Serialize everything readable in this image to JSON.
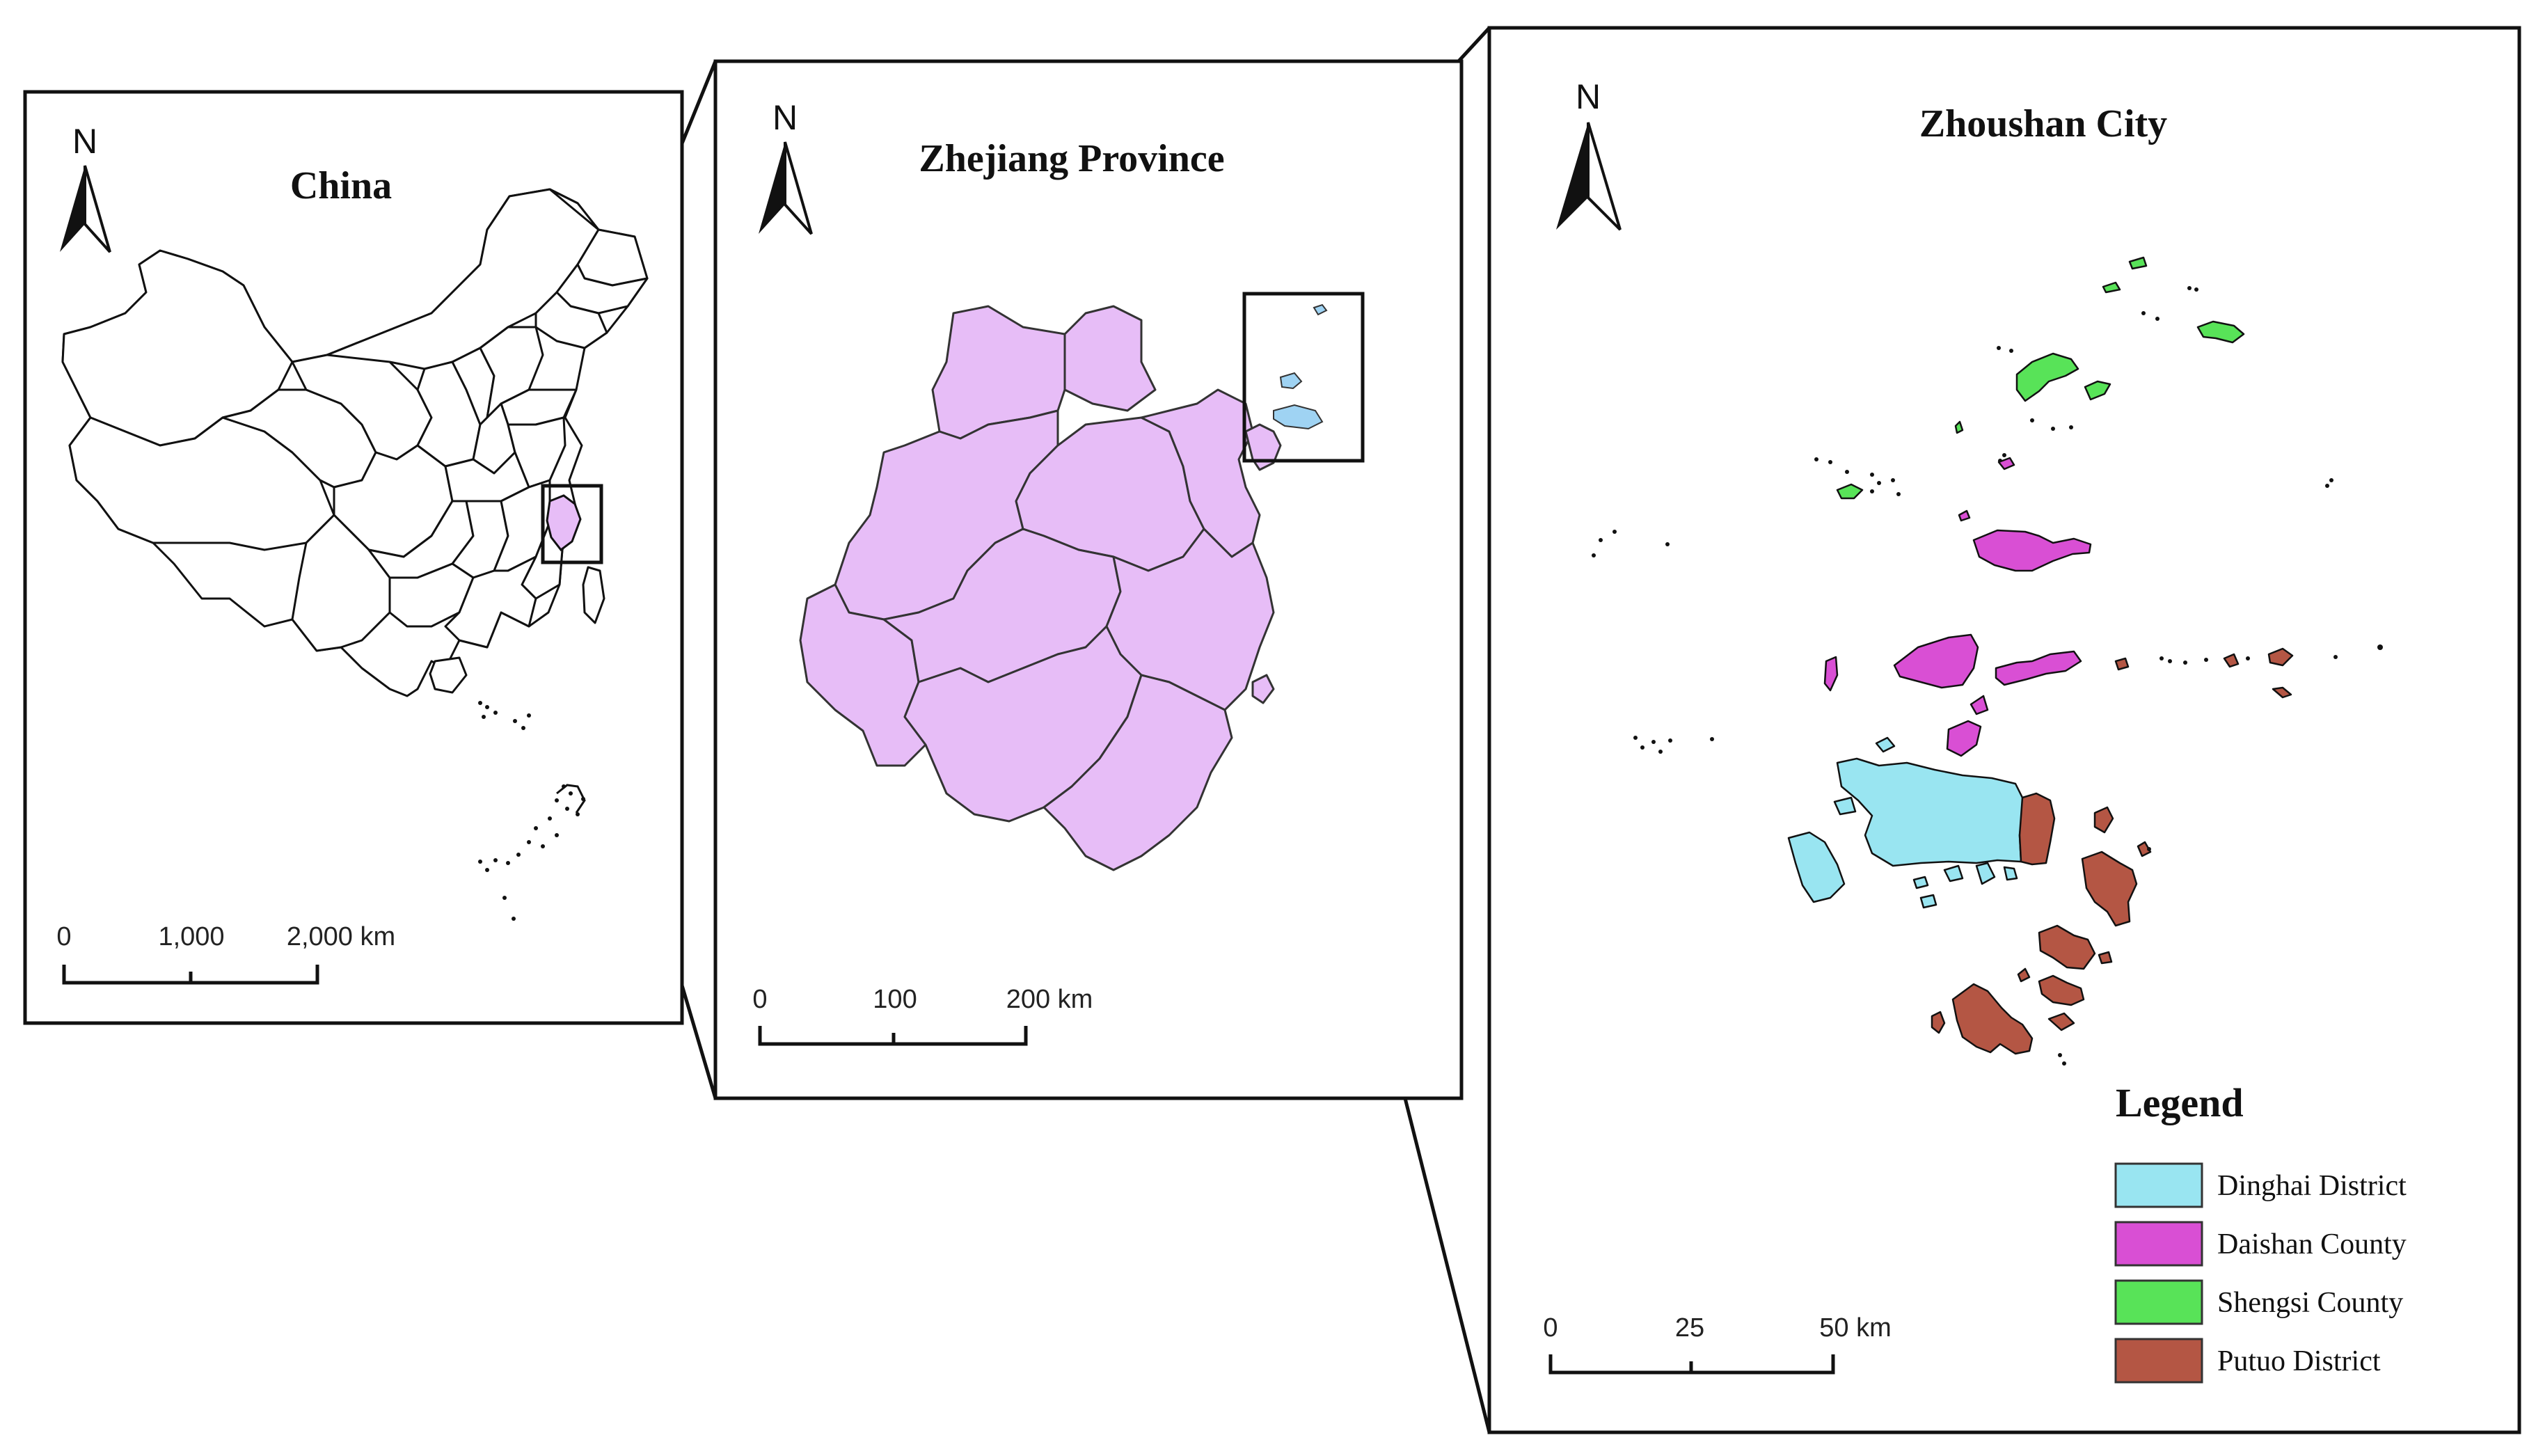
{
  "colors": {
    "zhejiang": "#e7bdf7",
    "zhoushan_highlight": "#9fd3f3",
    "dinghai": "#99e5f1",
    "daishan": "#d94fd4",
    "shengsi": "#58e358",
    "putuo": "#b45644",
    "outline": "#111111"
  },
  "panels": {
    "china": {
      "title": "China",
      "north": "N",
      "scale": {
        "ticks": [
          "0",
          "1,000",
          "2,000 km"
        ]
      }
    },
    "zhejiang": {
      "title": "Zhejiang Province",
      "north": "N",
      "scale": {
        "ticks": [
          "0",
          "100",
          "200 km"
        ]
      }
    },
    "zhoushan": {
      "title": "Zhoushan City",
      "north": "N",
      "scale": {
        "ticks": [
          "0",
          "25",
          "50 km"
        ]
      },
      "legend": {
        "title": "Legend",
        "items": [
          {
            "label": "Dinghai District",
            "color": "#99e5f1"
          },
          {
            "label": "Daishan County",
            "color": "#d94fd4"
          },
          {
            "label": "Shengsi County",
            "color": "#58e358"
          },
          {
            "label": "Putuo District",
            "color": "#b45644"
          }
        ]
      }
    }
  }
}
